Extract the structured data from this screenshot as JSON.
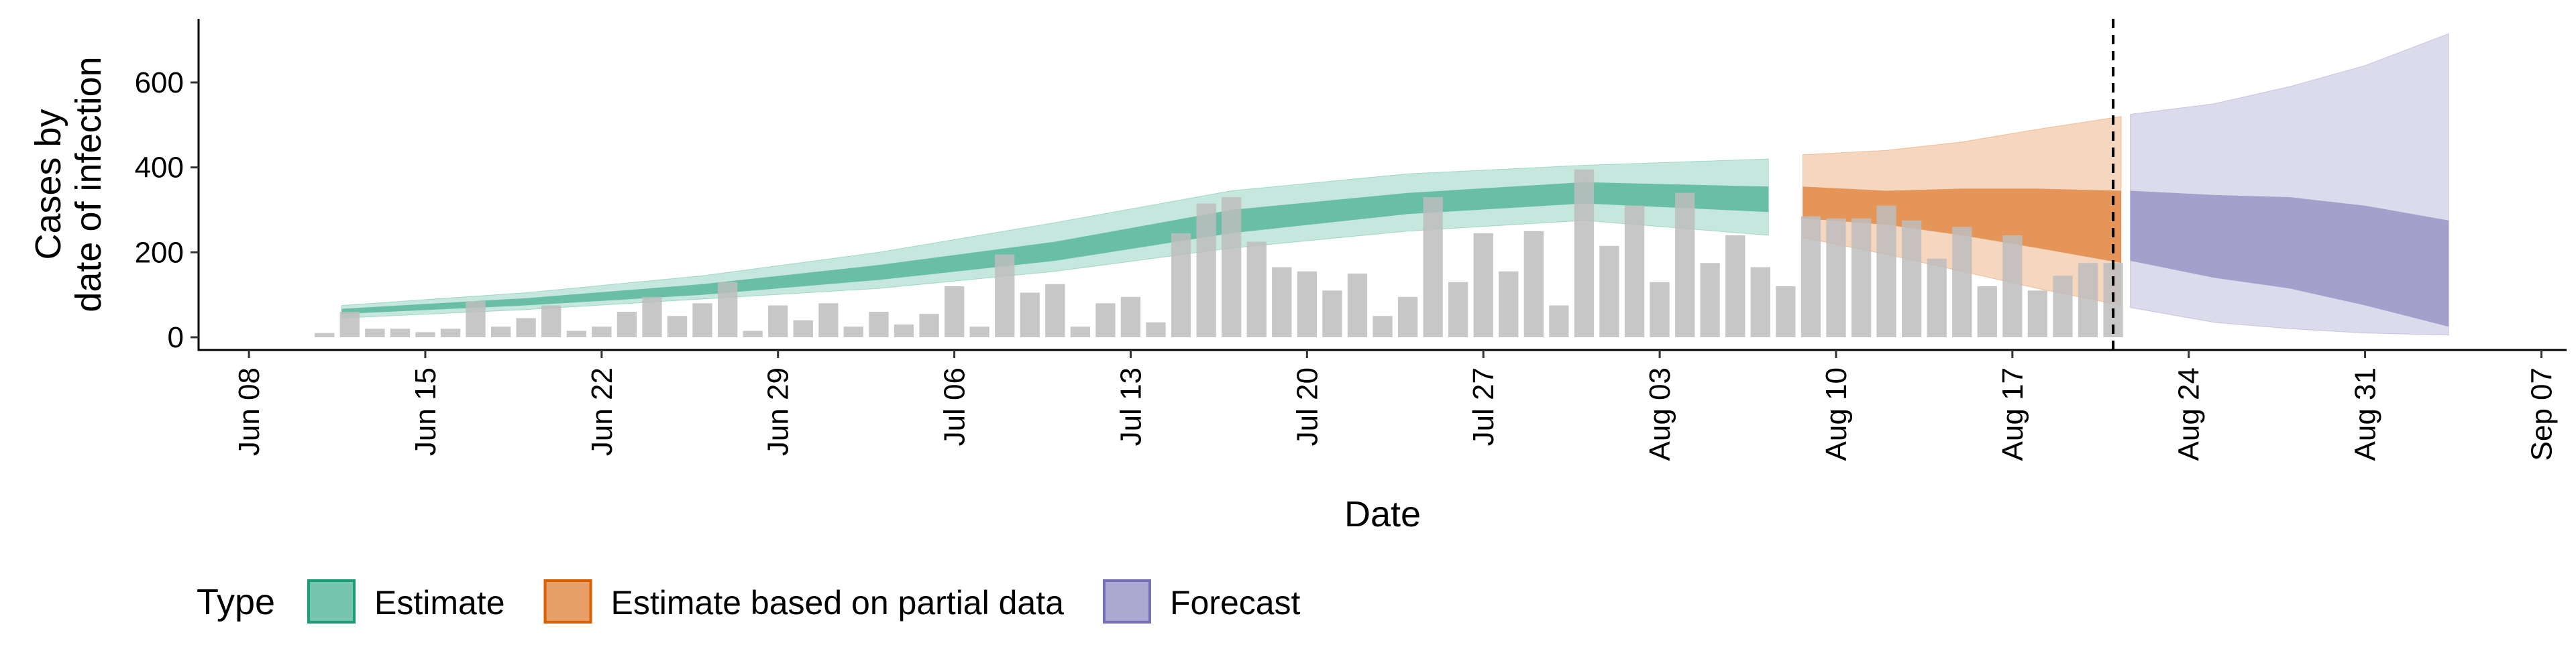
{
  "chart_data": {
    "type": "area",
    "xlabel": "Date",
    "ylabel": [
      "Cases by",
      "date of infection"
    ],
    "x_ticks": [
      "Jun 08",
      "Jun 15",
      "Jun 22",
      "Jun 29",
      "Jul 06",
      "Jul 13",
      "Jul 20",
      "Jul 27",
      "Aug 03",
      "Aug 10",
      "Aug 17",
      "Aug 24",
      "Aug 31",
      "Sep 07"
    ],
    "y_ticks": [
      0,
      200,
      400,
      600
    ],
    "xlim": [
      "2020-06-06",
      "2020-09-08"
    ],
    "ylim": [
      -30,
      750
    ],
    "grid": false,
    "legend": {
      "position": "bottom",
      "title": "Type",
      "items": [
        {
          "label": "Estimate",
          "color": "#1b9e77"
        },
        {
          "label": "Estimate based on partial data",
          "color": "#d95f02"
        },
        {
          "label": "Forecast",
          "color": "#7570b3"
        }
      ]
    },
    "bar_color": "#bdbdbd",
    "vline_date": "2020-08-21",
    "reported_cases": {
      "dates": [
        "2020-06-11",
        "2020-06-12",
        "2020-06-13",
        "2020-06-14",
        "2020-06-15",
        "2020-06-16",
        "2020-06-17",
        "2020-06-18",
        "2020-06-19",
        "2020-06-20",
        "2020-06-21",
        "2020-06-22",
        "2020-06-23",
        "2020-06-24",
        "2020-06-25",
        "2020-06-26",
        "2020-06-27",
        "2020-06-28",
        "2020-06-29",
        "2020-06-30",
        "2020-07-01",
        "2020-07-02",
        "2020-07-03",
        "2020-07-04",
        "2020-07-05",
        "2020-07-06",
        "2020-07-07",
        "2020-07-08",
        "2020-07-09",
        "2020-07-10",
        "2020-07-11",
        "2020-07-12",
        "2020-07-13",
        "2020-07-14",
        "2020-07-15",
        "2020-07-16",
        "2020-07-17",
        "2020-07-18",
        "2020-07-19",
        "2020-07-20",
        "2020-07-21",
        "2020-07-22",
        "2020-07-23",
        "2020-07-24",
        "2020-07-25",
        "2020-07-26",
        "2020-07-27",
        "2020-07-28",
        "2020-07-29",
        "2020-07-30",
        "2020-07-31",
        "2020-08-01",
        "2020-08-02",
        "2020-08-03",
        "2020-08-04",
        "2020-08-05",
        "2020-08-06",
        "2020-08-07",
        "2020-08-08",
        "2020-08-09",
        "2020-08-10",
        "2020-08-11",
        "2020-08-12",
        "2020-08-13",
        "2020-08-14",
        "2020-08-15",
        "2020-08-16",
        "2020-08-17",
        "2020-08-18",
        "2020-08-19",
        "2020-08-20",
        "2020-08-21"
      ],
      "values": [
        10,
        60,
        20,
        20,
        12,
        20,
        85,
        25,
        45,
        75,
        15,
        25,
        60,
        95,
        50,
        80,
        130,
        15,
        75,
        40,
        80,
        25,
        60,
        30,
        55,
        120,
        25,
        195,
        105,
        125,
        25,
        80,
        95,
        35,
        245,
        315,
        330,
        225,
        165,
        155,
        110,
        150,
        50,
        95,
        330,
        130,
        245,
        155,
        250,
        75,
        395,
        215,
        310,
        130,
        340,
        175,
        240,
        165,
        120,
        285,
        280,
        280,
        310,
        275,
        185,
        260,
        120,
        240,
        110,
        145,
        175,
        175
      ]
    },
    "series": [
      {
        "name": "Estimate",
        "color": "#1b9e77",
        "dates": [
          "2020-06-12",
          "2020-06-19",
          "2020-06-26",
          "2020-07-03",
          "2020-07-10",
          "2020-07-17",
          "2020-07-24",
          "2020-07-31",
          "2020-08-07"
        ],
        "inner": {
          "lower": [
            55,
            75,
            100,
            135,
            180,
            245,
            290,
            315,
            295
          ],
          "upper": [
            67,
            92,
            125,
            170,
            225,
            300,
            340,
            365,
            355
          ]
        },
        "outer": {
          "lower": [
            45,
            65,
            90,
            115,
            155,
            210,
            250,
            275,
            240
          ],
          "upper": [
            75,
            105,
            145,
            200,
            270,
            345,
            385,
            405,
            420
          ]
        }
      },
      {
        "name": "Estimate based on partial data",
        "color": "#d95f02",
        "dates": [
          "2020-08-09",
          "2020-08-12",
          "2020-08-15",
          "2020-08-18",
          "2020-08-21"
        ],
        "inner": {
          "lower": [
            280,
            265,
            240,
            210,
            175
          ],
          "upper": [
            355,
            345,
            350,
            350,
            345
          ]
        },
        "outer": {
          "lower": [
            235,
            195,
            155,
            115,
            75
          ],
          "upper": [
            430,
            440,
            460,
            490,
            520
          ]
        }
      },
      {
        "name": "Forecast",
        "color": "#7570b3",
        "dates": [
          "2020-08-22",
          "2020-08-25",
          "2020-08-28",
          "2020-08-31",
          "2020-09-03"
        ],
        "inner": {
          "lower": [
            180,
            140,
            115,
            75,
            25
          ],
          "upper": [
            345,
            335,
            330,
            310,
            275
          ]
        },
        "outer": {
          "lower": [
            70,
            35,
            20,
            10,
            5
          ],
          "upper": [
            525,
            550,
            590,
            640,
            715
          ]
        }
      }
    ]
  }
}
